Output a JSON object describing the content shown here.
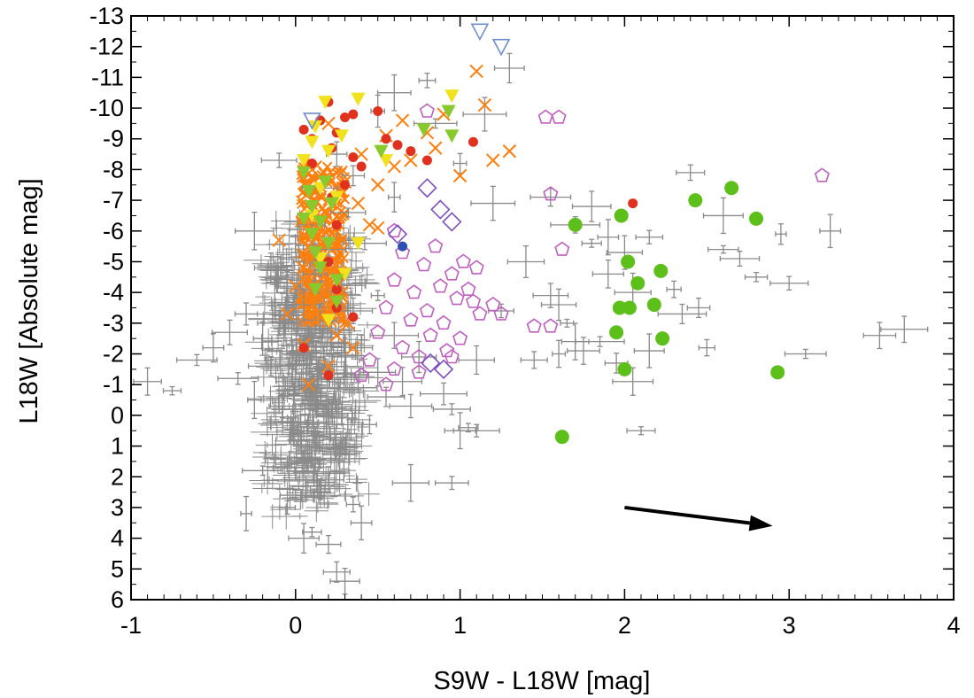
{
  "chart_data": {
    "type": "scatter",
    "title": "",
    "xlabel": "S9W - L18W [mag]",
    "ylabel": "L18W [Absolute mag]",
    "xlim": [
      -1,
      4
    ],
    "ylim": [
      6,
      -13
    ],
    "y_axis_inverted": true,
    "grid": false,
    "legend": "none",
    "x_ticks": [
      "-1",
      "0",
      "1",
      "2",
      "3",
      "4"
    ],
    "y_ticks": [
      "-13",
      "-12",
      "-11",
      "-10",
      "-9",
      "-8",
      "-7",
      "-6",
      "-5",
      "-4",
      "-3",
      "-2",
      "-1",
      "0",
      "1",
      "2",
      "3",
      "4",
      "5",
      "6"
    ],
    "series": [
      {
        "marker": "errorbar-gray",
        "color": "#8a8a8a",
        "points": [
          [
            -0.9,
            -1.1
          ],
          [
            -0.75,
            -0.8
          ],
          [
            -0.6,
            -1.8
          ],
          [
            -0.5,
            -2.2
          ],
          [
            -0.4,
            -2.7
          ],
          [
            -0.35,
            -1.2
          ],
          [
            -0.3,
            -3.3
          ],
          [
            -0.25,
            -0.5
          ],
          [
            -0.2,
            -2.5
          ],
          [
            -0.15,
            -1.6
          ],
          [
            -0.1,
            -3.0
          ],
          [
            -0.08,
            -0.3
          ],
          [
            -0.05,
            -4.2
          ],
          [
            -0.02,
            -2.0
          ],
          [
            0.0,
            -1.1
          ],
          [
            0.02,
            -5.0
          ],
          [
            0.05,
            -3.6
          ],
          [
            0.05,
            0.6
          ],
          [
            0.08,
            -2.4
          ],
          [
            0.1,
            -6.2
          ],
          [
            0.1,
            -0.7
          ],
          [
            0.12,
            -4.6
          ],
          [
            0.12,
            1.4
          ],
          [
            0.15,
            -3.1
          ],
          [
            0.15,
            -7.4
          ],
          [
            0.18,
            -1.5
          ],
          [
            0.2,
            -5.4
          ],
          [
            0.2,
            2.1
          ],
          [
            0.22,
            -2.8
          ],
          [
            0.25,
            -0.2
          ],
          [
            0.25,
            -8.5
          ],
          [
            0.28,
            -4.0
          ],
          [
            0.3,
            -1.9
          ],
          [
            0.3,
            1.0
          ],
          [
            0.32,
            -6.6
          ],
          [
            0.35,
            -3.4
          ],
          [
            0.38,
            -0.9
          ],
          [
            0.4,
            -2.2
          ],
          [
            0.42,
            -5.6
          ],
          [
            0.45,
            0.3
          ],
          [
            0.5,
            -1.4
          ],
          [
            0.5,
            -3.9
          ],
          [
            0.55,
            -0.6
          ],
          [
            0.6,
            -2.6
          ],
          [
            0.65,
            -1.1
          ],
          [
            0.7,
            -0.3
          ],
          [
            0.75,
            -1.9
          ],
          [
            0.8,
            -10.9
          ],
          [
            0.85,
            -9.5
          ],
          [
            0.9,
            -0.7
          ],
          [
            0.95,
            -0.2
          ],
          [
            1.0,
            -8.2
          ],
          [
            1.05,
            0.4
          ],
          [
            1.1,
            -1.8
          ],
          [
            1.15,
            -9.8
          ],
          [
            1.2,
            -6.9
          ],
          [
            1.25,
            -3.4
          ],
          [
            1.3,
            -11.3
          ],
          [
            -0.05,
            3.0
          ],
          [
            0.1,
            3.8
          ],
          [
            0.2,
            4.2
          ],
          [
            0.25,
            5.1
          ],
          [
            0.3,
            5.4
          ],
          [
            -0.2,
            1.8
          ],
          [
            -0.3,
            3.2
          ],
          [
            0.0,
            2.6
          ],
          [
            0.35,
            2.9
          ],
          [
            0.4,
            3.5
          ],
          [
            0.7,
            2.2
          ],
          [
            0.95,
            2.2
          ],
          [
            0.05,
            4.0
          ],
          [
            0.15,
            2.4
          ],
          [
            -0.1,
            -8.3
          ],
          [
            0.5,
            -9.9
          ],
          [
            0.6,
            -10.5
          ],
          [
            -0.15,
            -4.8
          ],
          [
            0.35,
            -7.8
          ],
          [
            0.6,
            -7.1
          ],
          [
            -0.25,
            -6.0
          ],
          [
            1.0,
            0.5
          ],
          [
            1.1,
            0.5
          ],
          [
            1.45,
            -1.8
          ],
          [
            1.6,
            -2.0
          ],
          [
            1.75,
            -2.1
          ],
          [
            1.85,
            -2.4
          ],
          [
            1.9,
            -5.8
          ],
          [
            1.95,
            -1.7
          ],
          [
            2.05,
            -1.1
          ],
          [
            2.1,
            0.5
          ],
          [
            2.15,
            -2.1
          ],
          [
            2.3,
            -4.1
          ],
          [
            2.35,
            -3.3
          ],
          [
            2.4,
            -7.9
          ],
          [
            2.45,
            -3.5
          ],
          [
            2.5,
            -2.2
          ],
          [
            2.6,
            -5.4
          ],
          [
            2.7,
            -5.1
          ],
          [
            2.8,
            -4.5
          ],
          [
            2.95,
            -5.9
          ],
          [
            3.0,
            -4.3
          ],
          [
            3.1,
            -2.0
          ],
          [
            3.25,
            -6.0
          ],
          [
            3.55,
            -2.6
          ],
          [
            3.7,
            -2.8
          ],
          [
            1.55,
            -3.9
          ],
          [
            1.6,
            -3.6
          ],
          [
            1.65,
            -3.0
          ],
          [
            1.7,
            -2.4
          ],
          [
            1.8,
            -5.6
          ],
          [
            1.9,
            -4.6
          ],
          [
            1.7,
            -6.2
          ],
          [
            1.8,
            -6.8
          ],
          [
            2.0,
            -5.3
          ],
          [
            2.05,
            -4.0
          ],
          [
            2.15,
            -5.8
          ],
          [
            2.6,
            -6.5
          ],
          [
            1.55,
            -7.1
          ],
          [
            1.4,
            -5.0
          ]
        ]
      },
      {
        "marker": "cross-orange",
        "color": "#ff7f0e",
        "points": [
          [
            0.0,
            -4.2
          ],
          [
            0.05,
            -4.8
          ],
          [
            0.08,
            -5.5
          ],
          [
            0.1,
            -6.3
          ],
          [
            0.1,
            -3.6
          ],
          [
            0.12,
            -7.0
          ],
          [
            0.15,
            -5.0
          ],
          [
            0.15,
            -3.2
          ],
          [
            0.18,
            -6.6
          ],
          [
            0.2,
            -4.4
          ],
          [
            0.22,
            -5.9
          ],
          [
            0.25,
            -2.6
          ],
          [
            0.28,
            -4.0
          ],
          [
            0.3,
            -7.6
          ],
          [
            0.32,
            -3.0
          ],
          [
            0.4,
            -8.5
          ],
          [
            0.45,
            -6.2
          ],
          [
            0.5,
            -7.5
          ],
          [
            0.55,
            -9.1
          ],
          [
            0.6,
            -8.1
          ],
          [
            0.65,
            -9.6
          ],
          [
            0.7,
            -8.3
          ],
          [
            0.8,
            -9.2
          ],
          [
            0.85,
            -8.7
          ],
          [
            0.9,
            -9.8
          ],
          [
            1.0,
            -7.8
          ],
          [
            1.1,
            -11.2
          ],
          [
            1.15,
            -10.1
          ],
          [
            1.2,
            -8.3
          ],
          [
            1.3,
            -8.6
          ],
          [
            0.38,
            -6.9
          ],
          [
            0.5,
            -6.1
          ],
          [
            -0.1,
            -5.7
          ],
          [
            -0.05,
            -3.3
          ],
          [
            0.05,
            -2.3
          ],
          [
            0.35,
            -2.2
          ],
          [
            0.2,
            -1.6
          ],
          [
            0.08,
            -1.0
          ],
          [
            0.1,
            -8.0
          ],
          [
            0.2,
            -9.5
          ]
        ]
      },
      {
        "marker": "circle-red",
        "color": "#e0301e",
        "points": [
          [
            0.1,
            -9.0
          ],
          [
            0.15,
            -9.6
          ],
          [
            0.2,
            -10.2
          ],
          [
            0.22,
            -8.7
          ],
          [
            0.25,
            -9.2
          ],
          [
            0.3,
            -9.7
          ],
          [
            0.35,
            -8.4
          ],
          [
            0.35,
            -9.8
          ],
          [
            0.4,
            -8.1
          ],
          [
            0.5,
            -9.9
          ],
          [
            0.55,
            -9.0
          ],
          [
            0.62,
            -8.8
          ],
          [
            0.7,
            -8.6
          ],
          [
            0.8,
            -8.3
          ],
          [
            1.08,
            -8.9
          ],
          [
            0.3,
            -7.5
          ],
          [
            0.25,
            -6.2
          ],
          [
            0.2,
            -5.0
          ],
          [
            0.25,
            -4.1
          ],
          [
            0.35,
            -3.2
          ],
          [
            0.05,
            -2.2
          ],
          [
            0.2,
            -1.3
          ],
          [
            0.1,
            -8.2
          ],
          [
            0.22,
            -7.1
          ],
          [
            2.05,
            -6.9
          ],
          [
            0.05,
            -9.3
          ],
          [
            0.25,
            -3.5
          ]
        ]
      },
      {
        "marker": "triangle-down-yellow",
        "color": "#f2e21e",
        "points": [
          [
            0.05,
            -8.3
          ],
          [
            0.1,
            -8.9
          ],
          [
            0.12,
            -9.4
          ],
          [
            0.15,
            -7.4
          ],
          [
            0.18,
            -10.2
          ],
          [
            0.2,
            -8.6
          ],
          [
            0.25,
            -7.1
          ],
          [
            0.28,
            -9.1
          ],
          [
            0.38,
            -10.3
          ],
          [
            0.38,
            -5.6
          ],
          [
            0.2,
            -3.1
          ],
          [
            0.3,
            -4.6
          ],
          [
            0.55,
            -8.3
          ],
          [
            0.95,
            -10.4
          ],
          [
            0.1,
            -6.5
          ],
          [
            0.15,
            -5.1
          ]
        ]
      },
      {
        "marker": "triangle-down-green",
        "color": "#88c92e",
        "points": [
          [
            0.05,
            -7.9
          ],
          [
            0.08,
            -7.3
          ],
          [
            0.1,
            -6.8
          ],
          [
            0.1,
            -5.9
          ],
          [
            0.12,
            -5.3
          ],
          [
            0.15,
            -6.3
          ],
          [
            0.15,
            -4.8
          ],
          [
            0.18,
            -7.6
          ],
          [
            0.2,
            -5.6
          ],
          [
            0.22,
            -6.9
          ],
          [
            0.25,
            -4.4
          ],
          [
            0.25,
            -3.7
          ],
          [
            0.52,
            -8.6
          ],
          [
            0.78,
            -9.3
          ],
          [
            0.93,
            -9.9
          ],
          [
            0.95,
            -9.1
          ],
          [
            0.12,
            -4.1
          ],
          [
            0.05,
            -6.4
          ]
        ]
      },
      {
        "marker": "circle-green",
        "color": "#5cbf1a",
        "points": [
          [
            1.62,
            0.7
          ],
          [
            1.7,
            -6.2
          ],
          [
            1.95,
            -2.7
          ],
          [
            1.97,
            -3.5
          ],
          [
            1.98,
            -6.5
          ],
          [
            2.0,
            -1.5
          ],
          [
            2.02,
            -5.0
          ],
          [
            2.03,
            -3.5
          ],
          [
            2.08,
            -4.3
          ],
          [
            2.18,
            -3.6
          ],
          [
            2.22,
            -4.7
          ],
          [
            2.23,
            -2.5
          ],
          [
            2.43,
            -7.0
          ],
          [
            2.65,
            -7.4
          ],
          [
            2.8,
            -6.4
          ],
          [
            2.93,
            -1.4
          ]
        ]
      },
      {
        "marker": "pentagon-open-purple",
        "color": "#c05fc0",
        "points": [
          [
            0.45,
            -1.8
          ],
          [
            0.5,
            -2.7
          ],
          [
            0.55,
            -3.5
          ],
          [
            0.6,
            -4.4
          ],
          [
            0.6,
            -1.5
          ],
          [
            0.65,
            -5.3
          ],
          [
            0.65,
            -2.2
          ],
          [
            0.7,
            -3.1
          ],
          [
            0.72,
            -4.0
          ],
          [
            0.75,
            -1.9
          ],
          [
            0.78,
            -4.9
          ],
          [
            0.8,
            -3.4
          ],
          [
            0.82,
            -2.6
          ],
          [
            0.85,
            -5.5
          ],
          [
            0.88,
            -4.2
          ],
          [
            0.9,
            -3.0
          ],
          [
            0.92,
            -2.1
          ],
          [
            0.95,
            -4.6
          ],
          [
            0.98,
            -3.8
          ],
          [
            1.0,
            -2.5
          ],
          [
            1.02,
            -5.0
          ],
          [
            1.05,
            -4.1
          ],
          [
            1.08,
            -3.7
          ],
          [
            1.1,
            -4.8
          ],
          [
            1.12,
            -3.3
          ],
          [
            1.2,
            -3.6
          ],
          [
            1.25,
            -3.3
          ],
          [
            1.45,
            -2.9
          ],
          [
            1.55,
            -2.9
          ],
          [
            1.52,
            -9.7
          ],
          [
            1.55,
            -7.2
          ],
          [
            1.6,
            -9.7
          ],
          [
            1.62,
            -5.4
          ],
          [
            0.8,
            -9.9
          ],
          [
            0.6,
            -6.0
          ],
          [
            3.2,
            -7.8
          ],
          [
            0.55,
            -1.0
          ],
          [
            0.4,
            -1.3
          ],
          [
            0.75,
            -1.4
          ],
          [
            0.95,
            -1.9
          ]
        ]
      },
      {
        "marker": "diamond-open-purple",
        "color": "#7d4fc0",
        "points": [
          [
            0.8,
            -7.4
          ],
          [
            0.88,
            -6.7
          ],
          [
            0.95,
            -6.3
          ],
          [
            0.82,
            -1.7
          ],
          [
            0.9,
            -1.5
          ],
          [
            0.62,
            -5.9
          ]
        ]
      },
      {
        "marker": "triangle-down-open-blue",
        "color": "#6f8ed0",
        "points": [
          [
            1.12,
            -12.5
          ],
          [
            1.25,
            -12.0
          ],
          [
            0.1,
            -9.6
          ]
        ]
      },
      {
        "marker": "circle-blue",
        "color": "#2f4fb0",
        "points": [
          [
            0.65,
            -5.5
          ]
        ]
      }
    ],
    "arrow": {
      "from": [
        2.0,
        3.0
      ],
      "to": [
        2.9,
        3.6
      ],
      "color": "#000000"
    }
  }
}
